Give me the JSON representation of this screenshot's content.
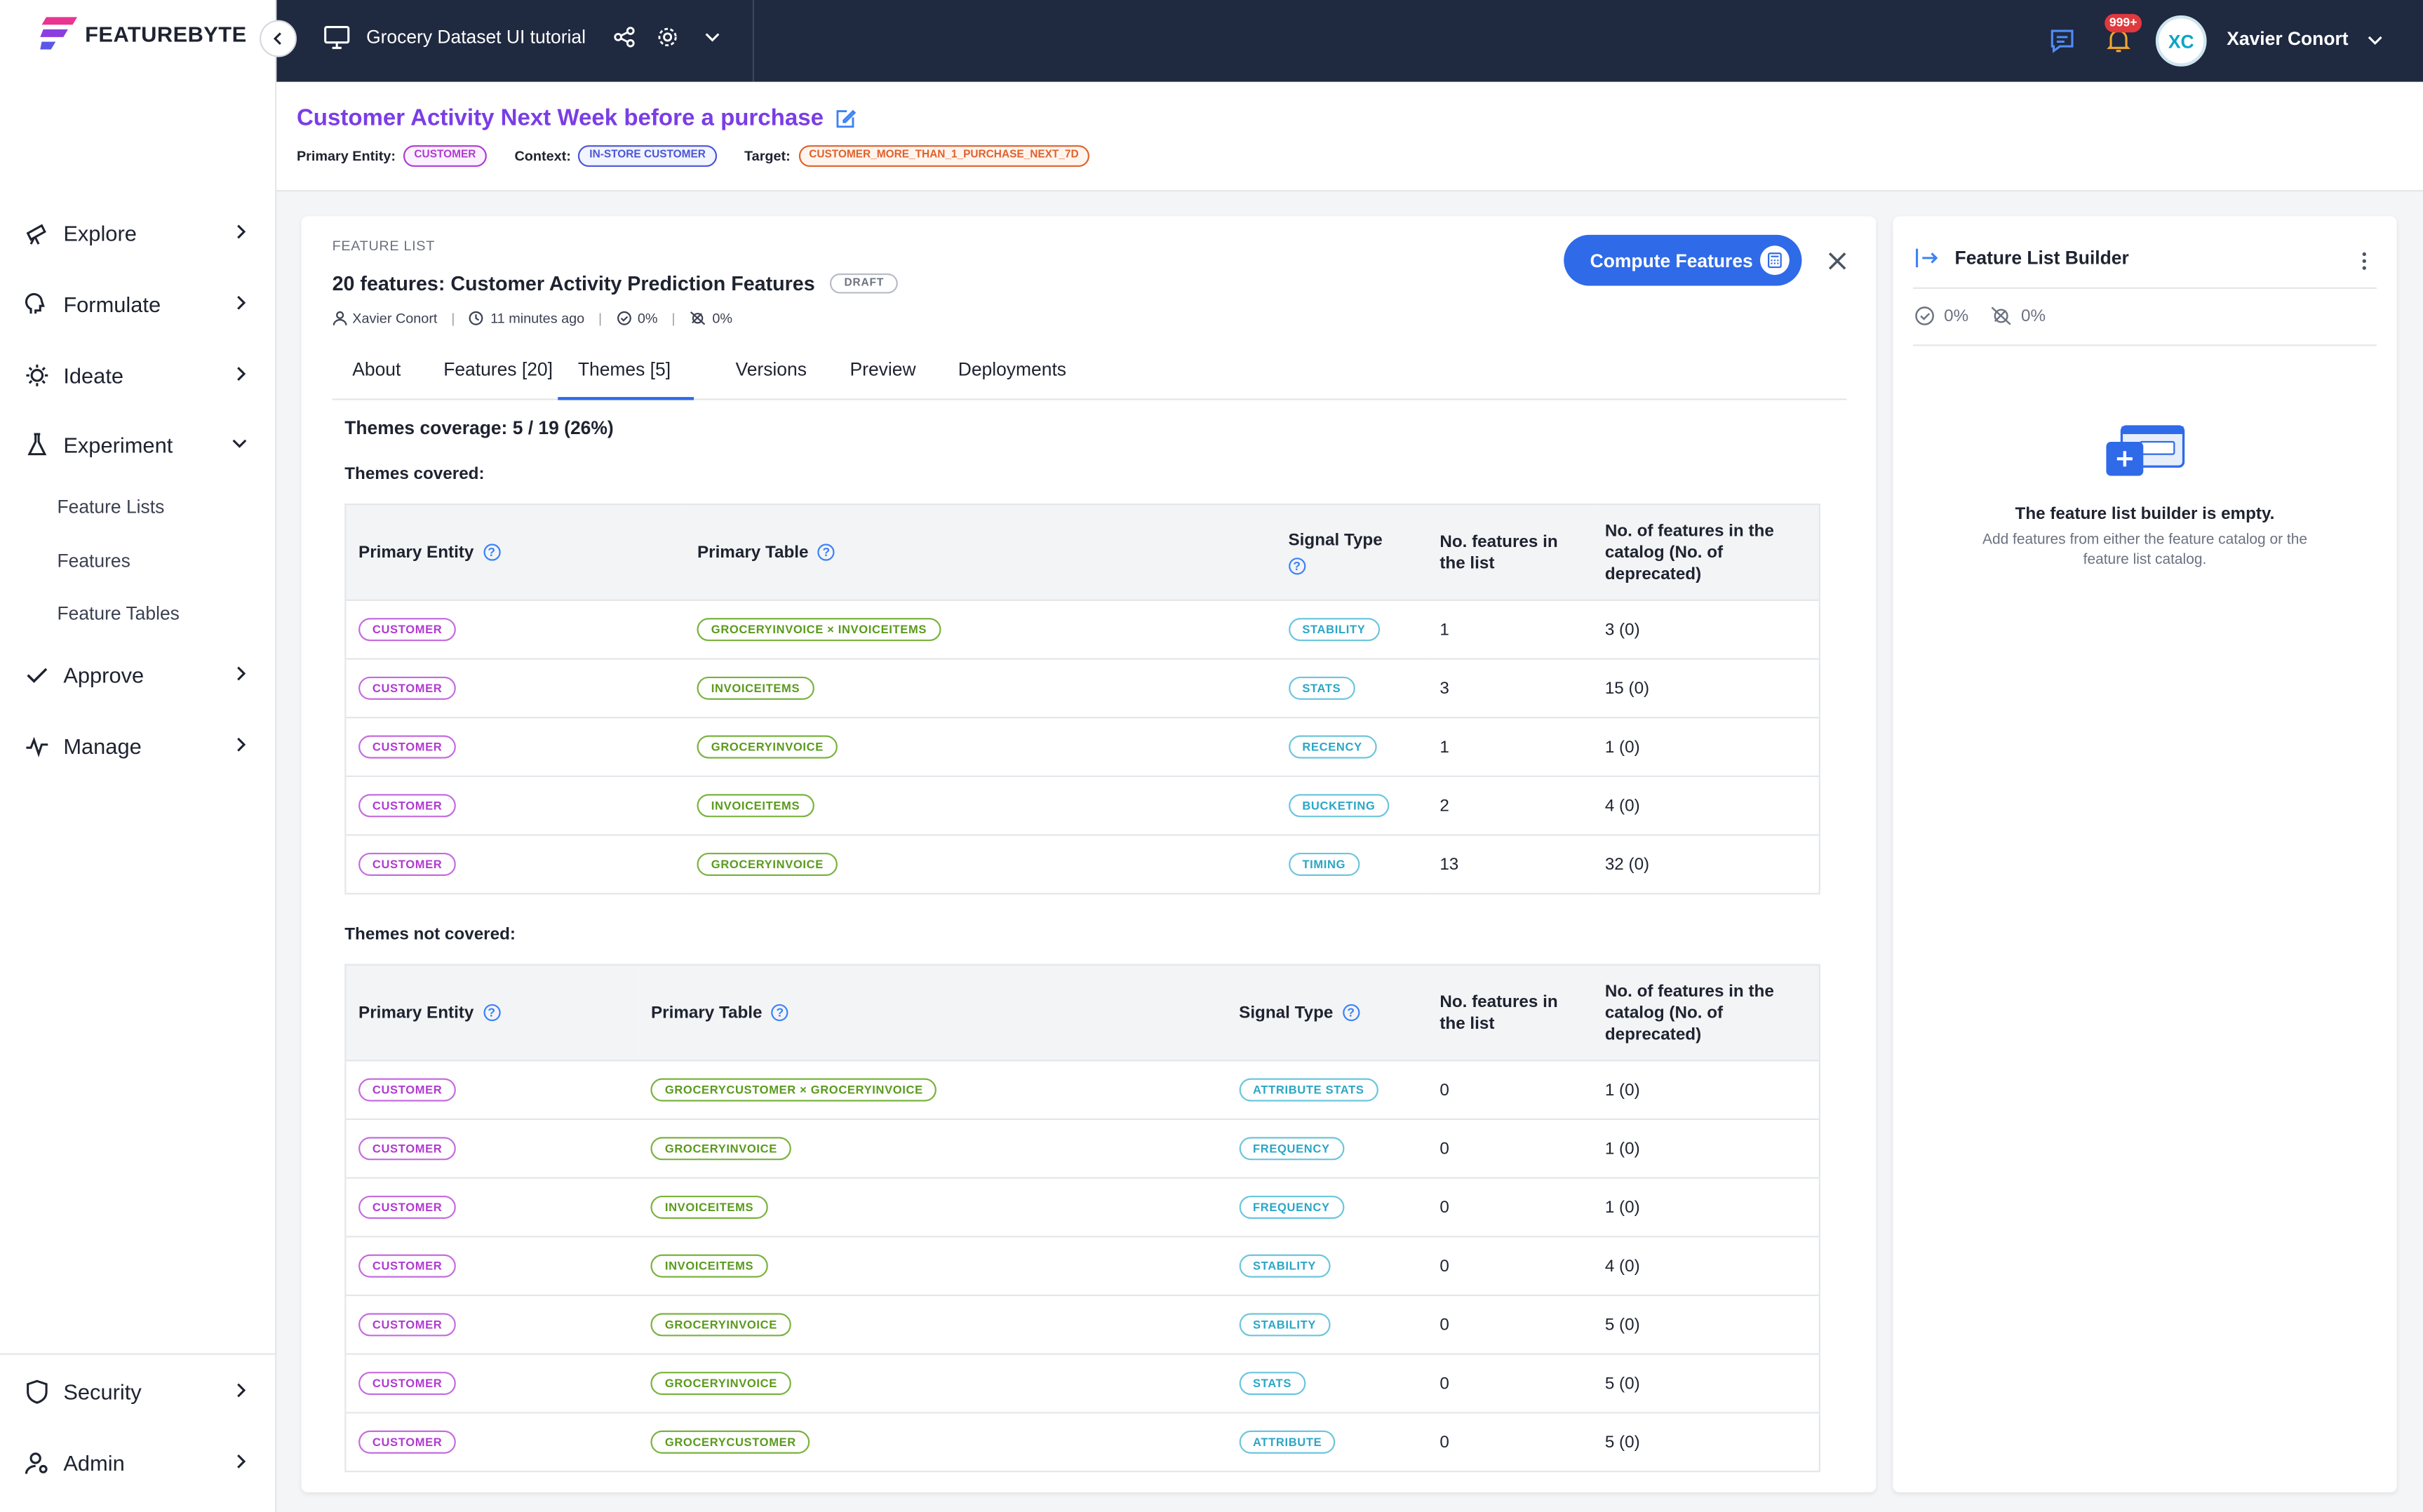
{
  "app": {
    "brand": "FEATUREBYTE",
    "project_title": "Grocery Dataset UI tutorial",
    "notifications": "999+",
    "user_initials": "XC",
    "user_name": "Xavier Conort"
  },
  "sidebar": {
    "items": [
      {
        "label": "Explore",
        "icon": "telescope-icon"
      },
      {
        "label": "Formulate",
        "icon": "head-icon"
      },
      {
        "label": "Ideate",
        "icon": "bulb-icon"
      },
      {
        "label": "Experiment",
        "icon": "flask-icon"
      },
      {
        "label": "Approve",
        "icon": "check-icon"
      },
      {
        "label": "Manage",
        "icon": "pulse-icon"
      }
    ],
    "sub_items": [
      "Feature Lists",
      "Features",
      "Feature Tables"
    ],
    "bottom": [
      {
        "label": "Security",
        "icon": "shield-icon"
      },
      {
        "label": "Admin",
        "icon": "user-gear-icon"
      }
    ]
  },
  "header": {
    "title": "Customer Activity Next Week before a purchase",
    "primary_entity_label": "Primary Entity:",
    "primary_entity": "CUSTOMER",
    "context_label": "Context:",
    "context": "IN-STORE CUSTOMER",
    "target_label": "Target:",
    "target": "CUSTOMER_MORE_THAN_1_PURCHASE_NEXT_7D"
  },
  "feature_list": {
    "section_label": "FEATURE LIST",
    "title": "20 features: Customer Activity Prediction Features",
    "status": "DRAFT",
    "author": "Xavier Conort",
    "updated": "11 minutes ago",
    "readiness": "0%",
    "deprecated": "0%",
    "compute_label": "Compute Features",
    "tabs": [
      "About",
      "Features [20]",
      "Themes [5]",
      "Versions",
      "Preview",
      "Deployments"
    ],
    "active_tab": "Themes [5]"
  },
  "themes": {
    "coverage": "Themes coverage: 5 / 19 (26%)",
    "covered_label": "Themes covered:",
    "not_covered_label": "Themes not covered:",
    "columns": {
      "entity": "Primary Entity",
      "table": "Primary Table",
      "signal": "Signal Type",
      "in_list": "No. features in the list",
      "in_catalog": "No. of features in the catalog (No. of deprecated)"
    },
    "covered": [
      {
        "entity": "CUSTOMER",
        "table": "GROCERYINVOICE × INVOICEITEMS",
        "signal": "STABILITY",
        "in_list": "1",
        "in_catalog": "3 (0)"
      },
      {
        "entity": "CUSTOMER",
        "table": "INVOICEITEMS",
        "signal": "STATS",
        "in_list": "3",
        "in_catalog": "15 (0)"
      },
      {
        "entity": "CUSTOMER",
        "table": "GROCERYINVOICE",
        "signal": "RECENCY",
        "in_list": "1",
        "in_catalog": "1 (0)"
      },
      {
        "entity": "CUSTOMER",
        "table": "INVOICEITEMS",
        "signal": "BUCKETING",
        "in_list": "2",
        "in_catalog": "4 (0)"
      },
      {
        "entity": "CUSTOMER",
        "table": "GROCERYINVOICE",
        "signal": "TIMING",
        "in_list": "13",
        "in_catalog": "32 (0)"
      }
    ],
    "not_covered": [
      {
        "entity": "CUSTOMER",
        "table": "GROCERYCUSTOMER × GROCERYINVOICE",
        "signal": "ATTRIBUTE STATS",
        "in_list": "0",
        "in_catalog": "1 (0)"
      },
      {
        "entity": "CUSTOMER",
        "table": "GROCERYINVOICE",
        "signal": "FREQUENCY",
        "in_list": "0",
        "in_catalog": "1 (0)"
      },
      {
        "entity": "CUSTOMER",
        "table": "INVOICEITEMS",
        "signal": "FREQUENCY",
        "in_list": "0",
        "in_catalog": "1 (0)"
      },
      {
        "entity": "CUSTOMER",
        "table": "INVOICEITEMS",
        "signal": "STABILITY",
        "in_list": "0",
        "in_catalog": "4 (0)"
      },
      {
        "entity": "CUSTOMER",
        "table": "GROCERYINVOICE",
        "signal": "STABILITY",
        "in_list": "0",
        "in_catalog": "5 (0)"
      },
      {
        "entity": "CUSTOMER",
        "table": "GROCERYINVOICE",
        "signal": "STATS",
        "in_list": "0",
        "in_catalog": "5 (0)"
      },
      {
        "entity": "CUSTOMER",
        "table": "GROCERYCUSTOMER",
        "signal": "ATTRIBUTE",
        "in_list": "0",
        "in_catalog": "5 (0)"
      }
    ]
  },
  "builder": {
    "title": "Feature List Builder",
    "readiness": "0%",
    "deprecated": "0%",
    "empty_title": "The feature list builder is empty.",
    "empty_sub": "Add features from either the feature catalog or the feature list catalog."
  },
  "colors": {
    "accent": "#2f6ae8",
    "title_purple": "#7a3de6",
    "topbar": "#1f2940",
    "entity": "#b03ad2",
    "table": "#5a9a1c",
    "signal": "#2ba6c6"
  }
}
